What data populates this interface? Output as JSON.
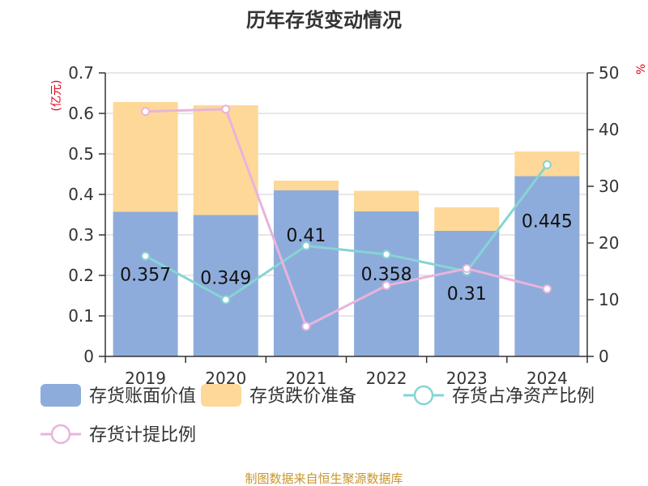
{
  "chart_data": {
    "type": "bar",
    "title": "历年存货变动情况",
    "categories": [
      "2019",
      "2020",
      "2021",
      "2022",
      "2023",
      "2024"
    ],
    "left_axis": {
      "unit_label": "(亿元)",
      "ylim": [
        0,
        0.7
      ],
      "ticks": [
        "0",
        "0.1",
        "0.2",
        "0.3",
        "0.4",
        "0.5",
        "0.6",
        "0.7"
      ]
    },
    "right_axis": {
      "unit_label": "%",
      "ylim": [
        0,
        50
      ],
      "ticks": [
        "0",
        "10",
        "20",
        "30",
        "40",
        "50"
      ]
    },
    "stacked_bars": [
      {
        "name": "存货账面价值",
        "color": "#8eacdb",
        "values": [
          0.357,
          0.349,
          0.41,
          0.358,
          0.31,
          0.445
        ],
        "labels": [
          "0.357",
          "0.349",
          "0.41",
          "0.358",
          "0.31",
          "0.445"
        ]
      },
      {
        "name": "存货跌价准备",
        "color": "#fdd898",
        "values": [
          0.271,
          0.271,
          0.024,
          0.051,
          0.058,
          0.061
        ]
      }
    ],
    "lines": [
      {
        "name": "存货占净资产比例",
        "color": "#86d4d4",
        "axis": "right",
        "values": [
          17.7,
          10.0,
          19.5,
          18.0,
          15.0,
          33.8
        ]
      },
      {
        "name": "存货计提比例",
        "color": "#e8b4dc",
        "axis": "right",
        "values": [
          43.2,
          43.6,
          5.3,
          12.5,
          15.5,
          11.9
        ]
      }
    ],
    "legend": {
      "position": "bottom"
    },
    "grid": true
  },
  "source_text": "制图数据来自恒生聚源数据库"
}
